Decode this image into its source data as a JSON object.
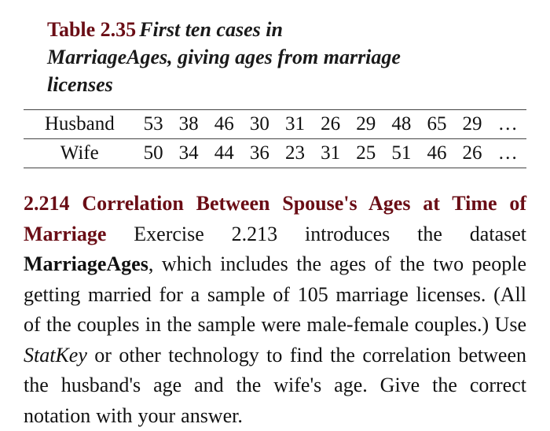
{
  "table": {
    "label": "Table 2.35",
    "title_line1": "First ten cases in",
    "title_line2": "MarriageAges, giving ages from marriage",
    "title_line3": "licenses",
    "rows": [
      {
        "label": "Husband",
        "values": [
          "53",
          "38",
          "46",
          "30",
          "31",
          "26",
          "29",
          "48",
          "65",
          "29"
        ],
        "trail": "…"
      },
      {
        "label": "Wife",
        "values": [
          "50",
          "34",
          "44",
          "36",
          "23",
          "31",
          "25",
          "51",
          "46",
          "26"
        ],
        "trail": "…"
      }
    ],
    "font_size_pt": 25,
    "rule_color": "#444444"
  },
  "exercise": {
    "number": "2.214",
    "title": "Correlation Between Spouse's Ages at Time of Marriage",
    "body_pre": "Exercise 2.213 introduces the dataset ",
    "dataset_name": "MarriageAges",
    "body_mid": ", which includes the ages of the two people getting married for a sample of 105 marriage licenses. (All of the couples in the sample were male-female couples.) Use ",
    "emph": "StatKey",
    "body_post": " or other technology to find the correlation between the husband's age and the wife's age. Give the correct notation with your answer."
  },
  "colors": {
    "accent": "#6a0d15",
    "text": "#111111",
    "background": "#ffffff"
  }
}
